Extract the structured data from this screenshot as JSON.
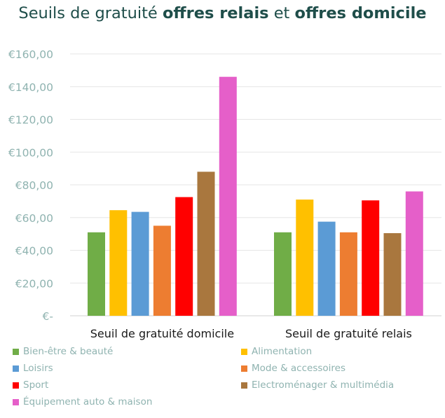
{
  "chart_data": {
    "type": "bar",
    "title_parts": [
      {
        "text": "Seuils de gratuité ",
        "bold": false
      },
      {
        "text": "offres relais",
        "bold": true
      },
      {
        "text": " et ",
        "bold": false
      },
      {
        "text": "offres domicile",
        "bold": true
      }
    ],
    "categories": [
      "Seuil de gratuité domicile",
      "Seuil de gratuité relais"
    ],
    "series": [
      {
        "name": "Bien-être & beauté",
        "color": "#70ad47",
        "values": [
          51,
          51
        ]
      },
      {
        "name": "Alimentation",
        "color": "#ffc000",
        "values": [
          64.5,
          71
        ]
      },
      {
        "name": "Loisirs",
        "color": "#5b9bd5",
        "values": [
          63.5,
          57.5
        ]
      },
      {
        "name": "Mode & accessoires",
        "color": "#ed7d31",
        "values": [
          55,
          51
        ]
      },
      {
        "name": "Sport",
        "color": "#ff0000",
        "values": [
          72.5,
          70.5
        ]
      },
      {
        "name": "Electroménager & multimédia",
        "color": "#a9773e",
        "values": [
          88,
          50.5
        ]
      },
      {
        "name": "Équipement auto & maison",
        "color": "#e55fc9",
        "values": [
          146,
          76
        ]
      }
    ],
    "ylim": [
      0,
      160
    ],
    "yticks": [
      0,
      20,
      40,
      60,
      80,
      100,
      120,
      140,
      160
    ],
    "ytick_labels": [
      "€-",
      "€20,00",
      "€40,00",
      "€60,00",
      "€80,00",
      "€100,00",
      "€120,00",
      "€140,00",
      "€160,00"
    ],
    "grid": true,
    "legend_position": "bottom",
    "xlabel": "",
    "ylabel": ""
  }
}
